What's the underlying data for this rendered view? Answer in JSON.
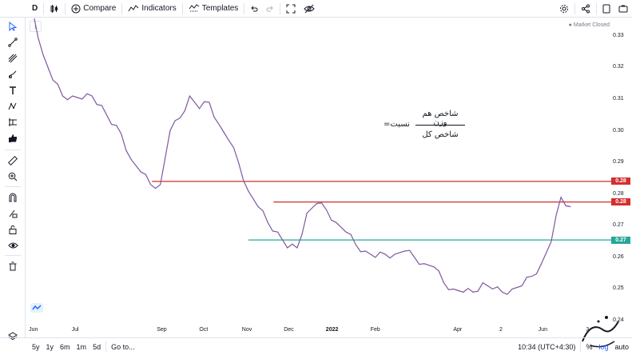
{
  "toolbar": {
    "interval": "D",
    "compare_label": "Compare",
    "indicators_label": "Indicators",
    "templates_label": "Templates"
  },
  "chart": {
    "market_status": "Market Closed",
    "formula": {
      "lhs": "نسبت=",
      "numerator": "شاخص هم وزن",
      "denominator": "شاخص کل"
    },
    "price_labels": [
      "0.33",
      "0.32",
      "0.31",
      "0.30",
      "0.29",
      "0.28",
      "0.27",
      "0.26",
      "0.25",
      "0.24"
    ],
    "level_badges": [
      {
        "label": "0.28",
        "color": "#d32f2f"
      },
      {
        "label": "0.28",
        "color": "#d32f2f"
      },
      {
        "label": "0.27",
        "color": "#26a69a"
      }
    ],
    "time_labels": [
      "Jun",
      "Jul",
      "Sep",
      "Oct",
      "Nov",
      "Dec",
      "2022",
      "Feb",
      "Apr",
      "2",
      "Jun",
      "3"
    ],
    "line_color": "#7e57a0"
  },
  "chart_data": {
    "type": "line",
    "title": "",
    "xlabel": "",
    "ylabel": "",
    "ylim": [
      0.24,
      0.335
    ],
    "x": [
      "2021-06-01",
      "2021-06-08",
      "2021-06-15",
      "2021-06-22",
      "2021-06-29",
      "2021-07-06",
      "2021-07-13",
      "2021-07-20",
      "2021-07-27",
      "2021-08-03",
      "2021-08-10",
      "2021-08-17",
      "2021-08-24",
      "2021-08-31",
      "2021-09-07",
      "2021-09-14",
      "2021-09-21",
      "2021-09-28",
      "2021-10-05",
      "2021-10-12",
      "2021-10-19",
      "2021-10-26",
      "2021-11-02",
      "2021-11-09",
      "2021-11-16",
      "2021-11-23",
      "2021-11-30",
      "2021-12-07",
      "2021-12-14",
      "2021-12-21",
      "2021-12-28",
      "2022-01-04",
      "2022-01-11",
      "2022-01-18",
      "2022-01-25",
      "2022-02-01",
      "2022-02-08",
      "2022-02-15",
      "2022-02-22",
      "2022-03-01",
      "2022-03-08",
      "2022-03-15",
      "2022-03-22",
      "2022-03-29",
      "2022-04-05",
      "2022-04-12",
      "2022-04-19",
      "2022-04-26",
      "2022-05-03",
      "2022-05-10",
      "2022-05-17",
      "2022-05-24",
      "2022-05-31",
      "2022-06-07",
      "2022-06-14",
      "2022-06-21"
    ],
    "series": [
      {
        "values": [
          0.337,
          0.324,
          0.316,
          0.311,
          0.311,
          0.31,
          0.311,
          0.308,
          0.302,
          0.299,
          0.291,
          0.287,
          0.283,
          0.283,
          0.3,
          0.304,
          0.311,
          0.307,
          0.309,
          0.302,
          0.297,
          0.29,
          0.281,
          0.276,
          0.271,
          0.268,
          0.263,
          0.263,
          0.274,
          0.277,
          0.275,
          0.271,
          0.268,
          0.264,
          0.262,
          0.26,
          0.261,
          0.261,
          0.262,
          0.26,
          0.258,
          0.257,
          0.252,
          0.25,
          0.249,
          0.249,
          0.252,
          0.25,
          0.249,
          0.25,
          0.251,
          0.254,
          0.258,
          0.265,
          0.279,
          0.276
        ]
      }
    ],
    "reference_lines": [
      {
        "value": 0.284,
        "color": "#d32f2f",
        "label": "0.28"
      },
      {
        "value": 0.2775,
        "color": "#d32f2f",
        "label": "0.28"
      },
      {
        "value": 0.2655,
        "color": "#26a69a",
        "label": "0.27"
      }
    ],
    "grid": false
  },
  "bottom": {
    "ranges": [
      "5y",
      "1y",
      "6m",
      "1m",
      "5d"
    ],
    "goto_label": "Go to...",
    "time_label": "10:34 (UTC+4:30)",
    "percent_label": "%",
    "log_label": "log",
    "auto_label": "auto"
  }
}
